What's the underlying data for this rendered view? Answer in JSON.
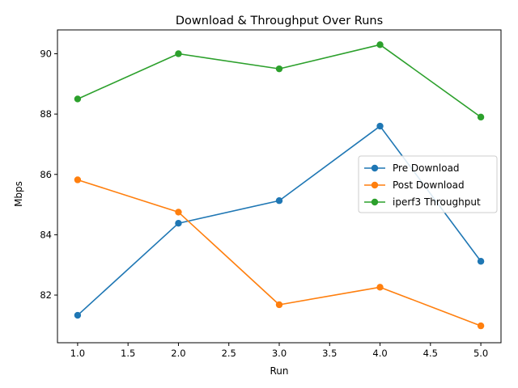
{
  "chart_data": {
    "type": "line",
    "title": "Download & Throughput Over Runs",
    "xlabel": "Run",
    "ylabel": "Mbps",
    "x": [
      1,
      2,
      3,
      4,
      5
    ],
    "xlim": [
      0.8,
      5.2
    ],
    "ylim": [
      80.42,
      90.79
    ],
    "xticks": [
      1.0,
      1.5,
      2.0,
      2.5,
      3.0,
      3.5,
      4.0,
      4.5,
      5.0
    ],
    "xtick_labels": [
      "1.0",
      "1.5",
      "2.0",
      "2.5",
      "3.0",
      "3.5",
      "4.0",
      "4.5",
      "5.0"
    ],
    "yticks": [
      82,
      84,
      86,
      88,
      90
    ],
    "ytick_labels": [
      "82",
      "84",
      "86",
      "88",
      "90"
    ],
    "grid": false,
    "legend_position": "center-right",
    "series": [
      {
        "name": "Pre Download",
        "color": "#1f77b4",
        "marker": "circle",
        "values": [
          81.33,
          84.38,
          85.13,
          87.6,
          83.12
        ]
      },
      {
        "name": "Post Download",
        "color": "#ff7f0e",
        "marker": "circle",
        "values": [
          85.82,
          84.75,
          81.68,
          82.26,
          80.98
        ]
      },
      {
        "name": "iperf3 Throughput",
        "color": "#2ca02c",
        "marker": "circle",
        "values": [
          88.5,
          90.0,
          89.5,
          90.3,
          87.9
        ]
      }
    ]
  }
}
